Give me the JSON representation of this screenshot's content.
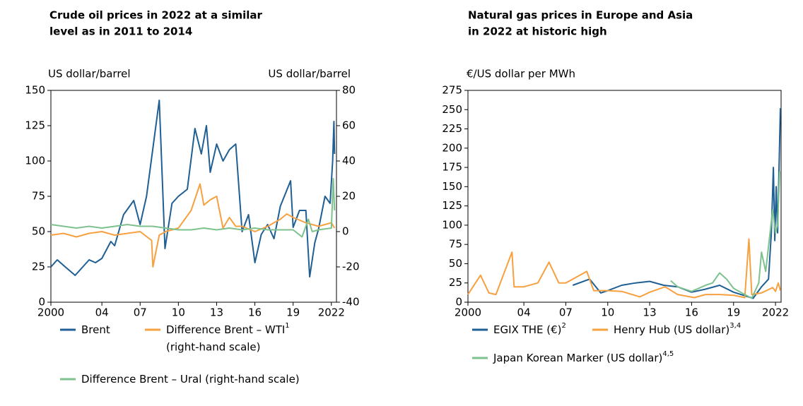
{
  "chart_data": [
    {
      "type": "line",
      "title": [
        "Crude oil prices in 2022 at a similar",
        "level as in 2011 to 2014"
      ],
      "y_label": "US dollar/barrel",
      "y2_label": "US dollar/barrel",
      "xlim": [
        2000,
        2022.4
      ],
      "xticks": [
        2000,
        {
          "value": 2004,
          "label": "04"
        },
        {
          "value": 2007,
          "label": "07"
        },
        {
          "value": 2010,
          "label": "10"
        },
        {
          "value": 2013,
          "label": "13"
        },
        {
          "value": 2016,
          "label": "16"
        },
        {
          "value": 2019,
          "label": "19"
        },
        2022
      ],
      "ylim": [
        0,
        150
      ],
      "yticks": [
        0,
        25,
        50,
        75,
        100,
        125,
        150
      ],
      "y2lim": [
        -40,
        80
      ],
      "y2ticks": [
        -40,
        -20,
        0,
        20,
        40,
        60,
        80
      ],
      "series": [
        {
          "name": "Brent",
          "color": "#1f5f94",
          "x": [
            2000,
            2000.5,
            2001,
            2001.9,
            2002.5,
            2003,
            2003.5,
            2004,
            2004.7,
            2005,
            2005.7,
            2006.5,
            2007,
            2007.5,
            2008.5,
            2008.95,
            2009.5,
            2010,
            2010.7,
            2011.3,
            2011.8,
            2012.2,
            2012.5,
            2013,
            2013.5,
            2014,
            2014.5,
            2015,
            2015.5,
            2016,
            2016.5,
            2017,
            2017.5,
            2018,
            2018.8,
            2019,
            2019.5,
            2020,
            2020.3,
            2020.7,
            2021,
            2021.5,
            2021.9,
            2022.1,
            2022.2,
            2022.25
          ],
          "values": [
            25,
            30,
            26,
            19,
            25,
            30,
            28,
            31,
            43,
            40,
            62,
            72,
            55,
            75,
            143,
            38,
            70,
            75,
            80,
            123,
            105,
            125,
            92,
            112,
            100,
            108,
            112,
            50,
            62,
            28,
            48,
            55,
            45,
            68,
            86,
            53,
            65,
            65,
            18,
            42,
            52,
            75,
            70,
            100,
            128,
            105
          ]
        },
        {
          "name": "Difference Brent – WTI",
          "footnote": "1",
          "note": "(right-hand scale)",
          "color": "#f7a040",
          "axis": "y2",
          "x": [
            2000,
            2001,
            2002,
            2003,
            2004,
            2005,
            2006,
            2007,
            2007.9,
            2008,
            2008.5,
            2009,
            2010,
            2011,
            2011.7,
            2012,
            2012.5,
            2013,
            2013.5,
            2014,
            2014.5,
            2015,
            2016,
            2017,
            2018,
            2018.5,
            2019,
            2020,
            2021,
            2022,
            2022.25
          ],
          "values": [
            -2,
            -1,
            -3,
            -1,
            0,
            -2,
            -1,
            0,
            -5,
            -20,
            -2,
            0,
            2,
            12,
            27,
            15,
            18,
            20,
            2,
            8,
            3,
            3,
            0,
            3,
            7,
            10,
            8,
            5,
            3,
            5,
            2
          ]
        },
        {
          "name": "Difference Brent – Ural (right-hand scale)",
          "color": "#7dc18e",
          "axis": "y2",
          "x": [
            2000,
            2001,
            2002,
            2003,
            2004,
            2005,
            2006,
            2007,
            2008,
            2009,
            2010,
            2011,
            2012,
            2013,
            2014,
            2015,
            2016,
            2017,
            2018,
            2019,
            2019.7,
            2020,
            2020.2,
            2020.5,
            2021,
            2022,
            2022.15,
            2022.25
          ],
          "values": [
            4,
            3,
            2,
            3,
            2,
            3,
            4,
            3,
            3,
            2,
            1,
            1,
            2,
            1,
            2,
            1,
            2,
            1,
            1,
            1,
            -3,
            3,
            7,
            0,
            1,
            2,
            30,
            12
          ]
        }
      ]
    },
    {
      "type": "line",
      "title": [
        "Natural gas prices in Europe and Asia",
        "in 2022 at historic high"
      ],
      "y_label": "€/US dollar per MWh",
      "xlim": [
        2000,
        2022.4
      ],
      "xticks": [
        2000,
        {
          "value": 2004,
          "label": "04"
        },
        {
          "value": 2007,
          "label": "07"
        },
        {
          "value": 2010,
          "label": "10"
        },
        {
          "value": 2013,
          "label": "13"
        },
        {
          "value": 2016,
          "label": "16"
        },
        {
          "value": 2019,
          "label": "19"
        },
        2022
      ],
      "ylim": [
        0,
        275
      ],
      "yticks": [
        0,
        25,
        50,
        75,
        100,
        125,
        150,
        175,
        200,
        225,
        250,
        275
      ],
      "series": [
        {
          "name": "EGIX THE (€)",
          "footnote": "2",
          "color": "#1f5f94",
          "x": [
            2007.5,
            2008.7,
            2009.5,
            2010,
            2011,
            2012,
            2013,
            2014,
            2015,
            2016,
            2017,
            2018,
            2019,
            2020.4,
            2021,
            2021.5,
            2021.7,
            2021.85,
            2021.95,
            2022.05,
            2022.15,
            2022.25,
            2022.35
          ],
          "values": [
            22,
            30,
            12,
            15,
            22,
            25,
            27,
            22,
            20,
            13,
            17,
            22,
            13,
            5,
            20,
            30,
            90,
            175,
            80,
            150,
            90,
            170,
            252
          ]
        },
        {
          "name": "Henry Hub (US dollar)",
          "footnote": "3,4",
          "color": "#f7a040",
          "x": [
            2000,
            2000.9,
            2001.5,
            2002,
            2003.15,
            2003.3,
            2004,
            2005,
            2005.8,
            2006.5,
            2007,
            2008.5,
            2009,
            2010,
            2011,
            2012.3,
            2013,
            2014.1,
            2015,
            2016.2,
            2017,
            2018,
            2019,
            2019.8,
            2020.1,
            2020.3,
            2021,
            2021.8,
            2022,
            2022.2,
            2022.35
          ],
          "values": [
            10,
            35,
            12,
            10,
            65,
            20,
            20,
            25,
            52,
            25,
            25,
            40,
            15,
            15,
            14,
            7,
            13,
            20,
            10,
            6,
            10,
            10,
            9,
            6,
            82,
            10,
            12,
            19,
            14,
            25,
            15
          ]
        },
        {
          "name": "Japan Korean Marker (US dollar)",
          "footnote": "4,5",
          "color": "#7dc18e",
          "x": [
            2014.5,
            2015,
            2016,
            2016.5,
            2017,
            2017.5,
            2018,
            2018.5,
            2019,
            2020.3,
            2020.8,
            2021,
            2021.3,
            2021.8,
            2022,
            2022.15,
            2022.3
          ],
          "values": [
            28,
            20,
            14,
            18,
            22,
            25,
            38,
            30,
            18,
            5,
            25,
            65,
            40,
            120,
            90,
            100,
            170
          ]
        }
      ]
    }
  ]
}
